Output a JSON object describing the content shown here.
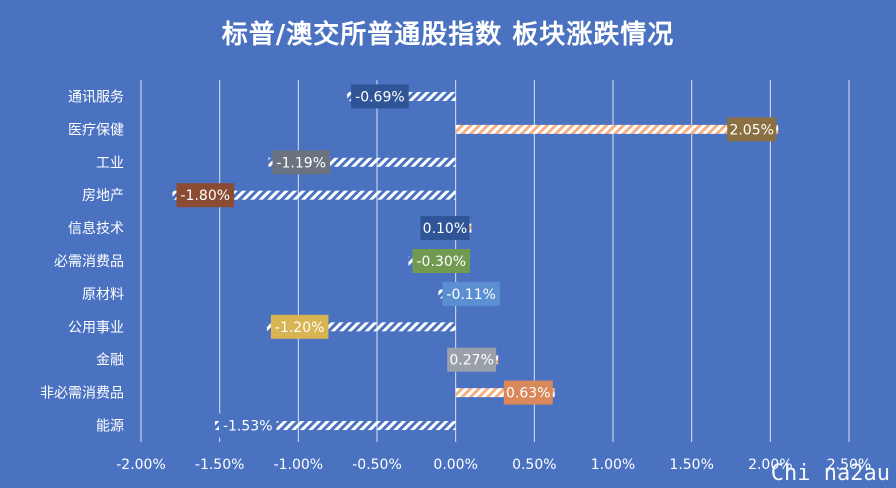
{
  "title": "标普/澳交所普通股指数 板块涨跌情况",
  "watermark": "Chi na2au",
  "chart_data": {
    "type": "bar",
    "orientation": "horizontal",
    "title": "标普/澳交所普通股指数 板块涨跌情况",
    "categories": [
      "通讯服务",
      "医疗保健",
      "工业",
      "房地产",
      "信息技术",
      "必需消费品",
      "原材料",
      "公用事业",
      "金融",
      "非必需消费品",
      "能源"
    ],
    "values": [
      -0.69,
      2.05,
      -1.19,
      -1.8,
      0.1,
      -0.3,
      -0.11,
      -1.2,
      0.27,
      0.63,
      -1.53
    ],
    "data_labels": [
      "-0.69%",
      "2.05%",
      "-1.19%",
      "-1.80%",
      "0.10%",
      "-0.30%",
      "-0.11%",
      "-1.20%",
      "0.27%",
      "0.63%",
      "-1.53%"
    ],
    "label_colors": [
      "#2f5597",
      "#8a7042",
      "#6b7280",
      "#8b4a32",
      "#2f5597",
      "#6f9a4f",
      "#5b8fd1",
      "#d8b452",
      "#9aa0aa",
      "#d8885a",
      "#4a72c0"
    ],
    "xlim": [
      -2.0,
      2.5
    ],
    "xticks": [
      "-2.00%",
      "-1.50%",
      "-1.00%",
      "-0.50%",
      "0.00%",
      "0.50%",
      "1.00%",
      "1.50%",
      "2.00%",
      "2.50%"
    ],
    "tick_values": [
      -2.0,
      -1.5,
      -1.0,
      -0.5,
      0.0,
      0.5,
      1.0,
      1.5,
      2.0,
      2.5
    ],
    "grid": true,
    "bar_fill": "hatched",
    "positive_hatch_color": "#f4b183",
    "negative_hatch_color": "#ffffff",
    "background": "#4a72c0"
  }
}
